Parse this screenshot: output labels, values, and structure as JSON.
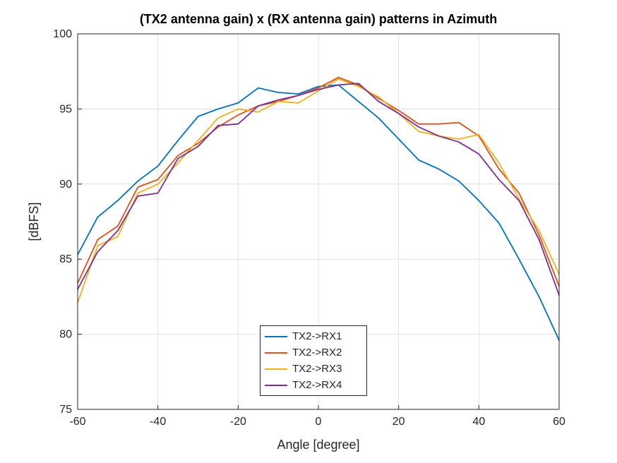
{
  "chart_data": {
    "type": "line",
    "title": "(TX2 antenna gain) x (RX antenna gain) patterns in Azimuth",
    "xlabel": "Angle [degree]",
    "ylabel": "[dBFS]",
    "xlim": [
      -60,
      60
    ],
    "ylim": [
      75,
      100
    ],
    "xticks": [
      -60,
      -40,
      -20,
      0,
      20,
      40,
      60
    ],
    "yticks": [
      75,
      80,
      85,
      90,
      95,
      100
    ],
    "grid": true,
    "legend_position": "lower-center",
    "x": [
      -60,
      -55,
      -50,
      -45,
      -40,
      -35,
      -30,
      -25,
      -20,
      -15,
      -10,
      -5,
      0,
      5,
      10,
      15,
      20,
      25,
      30,
      35,
      40,
      45,
      50,
      55,
      60
    ],
    "series": [
      {
        "name": "TX2->RX1",
        "color": "#0072BD",
        "values": [
          85.3,
          87.8,
          88.9,
          90.2,
          91.2,
          92.9,
          94.5,
          95.0,
          95.4,
          96.4,
          96.1,
          96.0,
          96.5,
          96.6,
          95.5,
          94.4,
          93.0,
          91.6,
          91.0,
          90.2,
          88.9,
          87.4,
          85.0,
          82.5,
          79.6
        ]
      },
      {
        "name": "TX2->RX2",
        "color": "#D95319",
        "values": [
          83.4,
          86.3,
          87.2,
          89.8,
          90.3,
          91.9,
          92.7,
          93.8,
          94.6,
          95.2,
          95.5,
          95.9,
          96.4,
          97.1,
          96.6,
          95.7,
          94.9,
          94.0,
          94.0,
          94.1,
          93.2,
          91.0,
          89.4,
          86.6,
          83.2
        ]
      },
      {
        "name": "TX2->RX3",
        "color": "#EDB120",
        "values": [
          82.1,
          85.9,
          86.5,
          89.4,
          90.0,
          91.4,
          92.9,
          94.4,
          95.0,
          94.8,
          95.5,
          95.4,
          96.2,
          97.0,
          96.5,
          95.8,
          94.7,
          93.5,
          93.2,
          93.0,
          93.3,
          91.4,
          89.0,
          86.9,
          84.0
        ]
      },
      {
        "name": "TX2->RX4",
        "color": "#7E2F8E",
        "values": [
          83.0,
          85.5,
          86.9,
          89.2,
          89.4,
          91.7,
          92.5,
          93.9,
          94.0,
          95.2,
          95.6,
          95.9,
          96.3,
          96.6,
          96.7,
          95.5,
          94.7,
          93.8,
          93.2,
          92.8,
          92.0,
          90.3,
          88.9,
          86.3,
          82.6
        ]
      }
    ],
    "colors": {
      "grid": "#E0E0E0",
      "axis": "#262626",
      "background": "#FFFFFF"
    }
  }
}
